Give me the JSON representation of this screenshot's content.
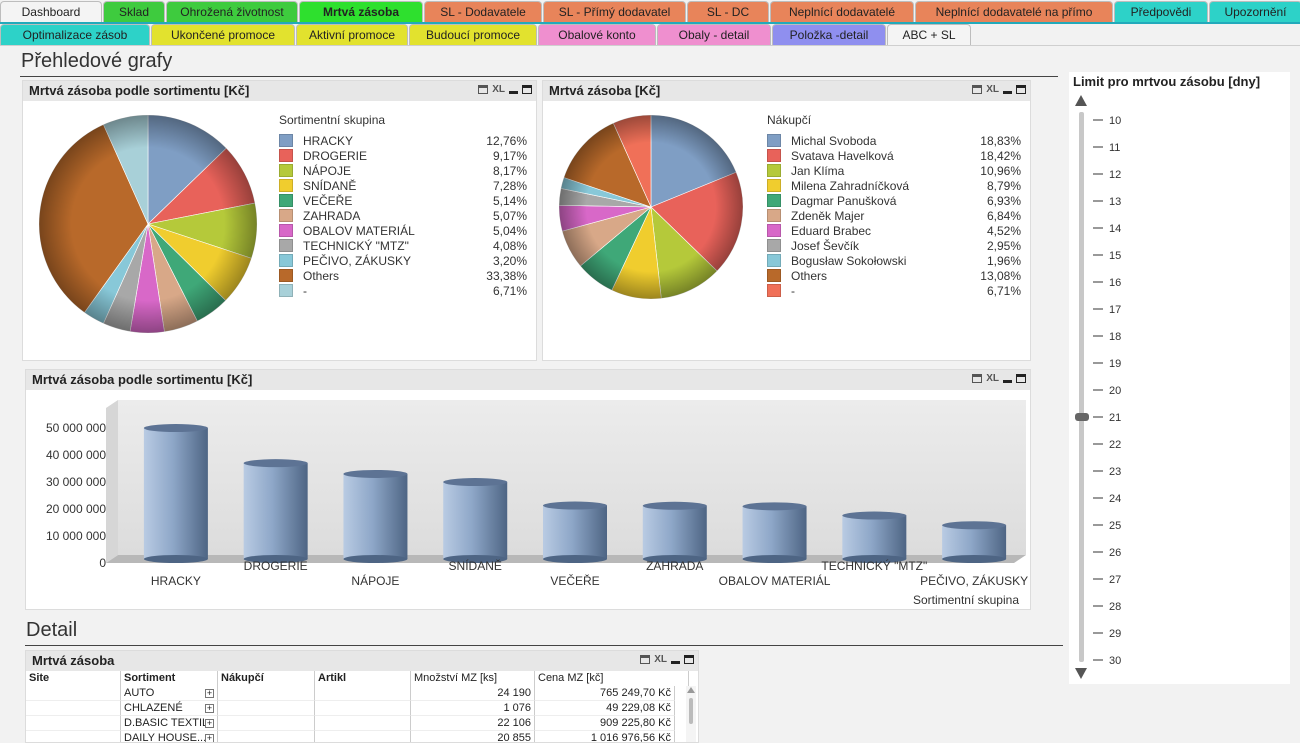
{
  "tabs_row1": [
    {
      "label": "Dashboard",
      "color": "#f4f4f4",
      "w": 102,
      "active": false
    },
    {
      "label": "Sklad",
      "color": "#3ecb3e",
      "w": 62,
      "active": false
    },
    {
      "label": "Ohrožená životnost",
      "color": "#3ecb3e",
      "w": 132,
      "active": false
    },
    {
      "label": "Mrtvá zásoba",
      "color": "#2ee02e",
      "w": 124,
      "active": true
    },
    {
      "label": "SL - Dodavatele",
      "color": "#e8845a",
      "w": 118,
      "active": false
    },
    {
      "label": "SL - Přímý dodavatel",
      "color": "#e8845a",
      "w": 143,
      "active": false
    },
    {
      "label": "SL - DC",
      "color": "#e8845a",
      "w": 82,
      "active": false
    },
    {
      "label": "Neplnící dodavatelé",
      "color": "#e8845a",
      "w": 144,
      "active": false
    },
    {
      "label": "Neplnící dodavatelé na přímo",
      "color": "#e8845a",
      "w": 198,
      "active": false
    },
    {
      "label": "Předpovědi",
      "color": "#2dd2c8",
      "w": 94,
      "active": false
    },
    {
      "label": "Upozornění",
      "color": "#2dd2c8",
      "w": 93,
      "active": false
    }
  ],
  "tabs_row2": [
    {
      "label": "Optimalizace zásob",
      "color": "#2dd2c8",
      "w": 150
    },
    {
      "label": "Ukončené promoce",
      "color": "#e2e22e",
      "w": 144
    },
    {
      "label": "Aktivní promoce",
      "color": "#e2e22e",
      "w": 112
    },
    {
      "label": "Budoucí promoce",
      "color": "#e2e22e",
      "w": 128
    },
    {
      "label": "Obalové konto",
      "color": "#ef8fcf",
      "w": 118
    },
    {
      "label": "Obaly - detail",
      "color": "#ef8fcf",
      "w": 114
    },
    {
      "label": "Položka -detail",
      "color": "#8f8fef",
      "w": 114
    },
    {
      "label": "ABC + SL",
      "color": "#f4f4f4",
      "w": 84
    }
  ],
  "section1_title": "Přehledové grafy",
  "section2_title": "Detail",
  "pie1": {
    "title": "Mrtvá zásoba podle sortimentu [Kč]",
    "legend_title": "Sortimentní skupina",
    "items": [
      {
        "label": "HRACKY",
        "value": "12,76%",
        "pct": 12.76,
        "color": "#7f9ec4"
      },
      {
        "label": "DROGERIE",
        "value": "9,17%",
        "pct": 9.17,
        "color": "#e8625a"
      },
      {
        "label": "NÁPOJE",
        "value": "8,17%",
        "pct": 8.17,
        "color": "#b5c93a"
      },
      {
        "label": "SNÍDANĚ",
        "value": "7,28%",
        "pct": 7.28,
        "color": "#f0cd2e"
      },
      {
        "label": "VEČEŘE",
        "value": "5,14%",
        "pct": 5.14,
        "color": "#3fa878"
      },
      {
        "label": "ZAHRADA",
        "value": "5,07%",
        "pct": 5.07,
        "color": "#d8a888"
      },
      {
        "label": "OBALOV MATERIÁL",
        "value": "5,04%",
        "pct": 5.04,
        "color": "#d868c8"
      },
      {
        "label": "TECHNICKÝ \"MTZ\"",
        "value": "4,08%",
        "pct": 4.08,
        "color": "#a8a8a8"
      },
      {
        "label": "PEČIVO, ZÁKUSKY",
        "value": "3,20%",
        "pct": 3.2,
        "color": "#88c8d8"
      },
      {
        "label": "Others",
        "value": "33,38%",
        "pct": 33.38,
        "color": "#b8692a"
      },
      {
        "label": "-",
        "value": "6,71%",
        "pct": 6.71,
        "color": "#a8d0d8"
      }
    ]
  },
  "pie2": {
    "title": "Mrtvá zásoba [Kč]",
    "legend_title": "Nákupčí",
    "items": [
      {
        "label": "Michal Svoboda",
        "value": "18,83%",
        "pct": 18.83,
        "color": "#7f9ec4"
      },
      {
        "label": "Svatava Havelková",
        "value": "18,42%",
        "pct": 18.42,
        "color": "#e8625a"
      },
      {
        "label": "Jan Klíma",
        "value": "10,96%",
        "pct": 10.96,
        "color": "#b5c93a"
      },
      {
        "label": "Milena Zahradníčková",
        "value": "8,79%",
        "pct": 8.79,
        "color": "#f0cd2e"
      },
      {
        "label": "Dagmar Panušková",
        "value": "6,93%",
        "pct": 6.93,
        "color": "#3fa878"
      },
      {
        "label": "Zdeněk Majer",
        "value": "6,84%",
        "pct": 6.84,
        "color": "#d8a888"
      },
      {
        "label": "Eduard Brabec",
        "value": "4,52%",
        "pct": 4.52,
        "color": "#d868c8"
      },
      {
        "label": "Josef Ševčík",
        "value": "2,95%",
        "pct": 2.95,
        "color": "#a8a8a8"
      },
      {
        "label": "Bogusław Sokołowski",
        "value": "1,96%",
        "pct": 1.96,
        "color": "#88c8d8"
      },
      {
        "label": "Others",
        "value": "13,08%",
        "pct": 13.08,
        "color": "#b8692a"
      },
      {
        "label": "-",
        "value": "6,71%",
        "pct": 6.71,
        "color": "#f07058"
      }
    ]
  },
  "bar_chart_box": {
    "title": "Mrtvá zásoba podle sortimentu [Kč]"
  },
  "chart_data": {
    "type": "bar",
    "title": "Mrtvá zásoba podle sortimentu [Kč]",
    "xlabel": "Sortimentní skupina",
    "ylabel": "",
    "ylim": [
      0,
      50000000
    ],
    "yticks": [
      "50 000 000",
      "40 000 000",
      "30 000 000",
      "20 000 000",
      "10 000 000",
      "0"
    ],
    "ytick_values": [
      50000000,
      40000000,
      30000000,
      20000000,
      10000000,
      0
    ],
    "categories": [
      "HRACKY",
      "DROGERIE",
      "NÁPOJE",
      "SNÍDANĚ",
      "VEČEŘE",
      "ZAHRADA",
      "OBALOV MATERIÁL",
      "TECHNICKÝ \"MTZ\"",
      "PEČIVO, ZÁKUSKY"
    ],
    "values": [
      48500000,
      35500000,
      31500000,
      28500000,
      19800000,
      19700000,
      19500000,
      16100000,
      12500000
    ],
    "grid": false
  },
  "slider": {
    "title": "Limit pro mrtvou zásobu [dny]",
    "ticks": [
      "10",
      "11",
      "12",
      "13",
      "14",
      "15",
      "16",
      "17",
      "18",
      "19",
      "20",
      "21",
      "22",
      "23",
      "24",
      "25",
      "26",
      "27",
      "28",
      "29",
      "30"
    ],
    "min": 10,
    "max": 30,
    "value": 21,
    "up_icon": "triangle-up",
    "down_icon": "triangle-down"
  },
  "detail_table": {
    "title": "Mrtvá zásoba",
    "columns": [
      "Site",
      "Sortiment",
      "Nákupčí",
      "Artikl",
      "Množství MZ [ks]",
      "Cena MZ [kč]"
    ],
    "rows": [
      {
        "sortiment": "AUTO",
        "qty": "24 190",
        "price": "765 249,70 Kč"
      },
      {
        "sortiment": "CHLAZENÉ",
        "qty": "1 076",
        "price": "49 229,08 Kč"
      },
      {
        "sortiment": "D.BASIC TEXTIL",
        "qty": "22 106",
        "price": "909 225,80 Kč"
      },
      {
        "sortiment": "DAILY HOUSE...",
        "qty": "20 855",
        "price": "1 016 976,56 Kč"
      }
    ]
  },
  "icons": {
    "print": "printer-icon",
    "xl": "XL",
    "minimize": "minimize-icon",
    "maximize": "maximize-icon"
  }
}
